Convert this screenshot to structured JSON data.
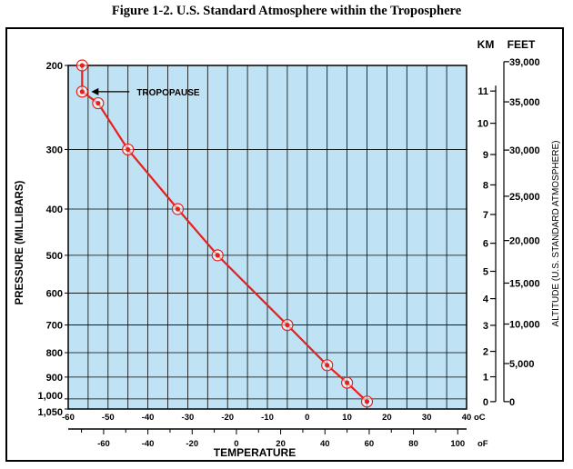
{
  "figure_title": "Figure 1-2. U.S. Standard Atmosphere within the Troposphere",
  "chart_data": {
    "type": "line",
    "title": "Figure 1-2. U.S. Standard Atmosphere within the Troposphere",
    "xlabel": "TEMPERATURE",
    "ylabel": "PRESSURE (MILLIBARS)",
    "y_scale": "log",
    "xlim_celsius": [
      -60,
      40
    ],
    "ylim_millibars": [
      200,
      1050
    ],
    "y_inverted": true,
    "grid": true,
    "plot_background": "#bfe3f5",
    "line_color": "#e8201b",
    "celsius_ticks": [
      "-60",
      "-50",
      "-40",
      "-30",
      "-20",
      "-10",
      "0",
      "10",
      "20",
      "30",
      "40"
    ],
    "celsius_unit": "oC",
    "fahrenheit_ticks": [
      "-60",
      "-40",
      "-20",
      "0",
      "20",
      "40",
      "60",
      "80",
      "100"
    ],
    "fahrenheit_unit": "oF",
    "pressure_ticks": [
      "200",
      "300",
      "400",
      "500",
      "600",
      "700",
      "800",
      "900",
      "1,000",
      "1,050"
    ],
    "km_header": "KM",
    "feet_header": "FEET",
    "km_ticks": [
      "0",
      "1",
      "2",
      "3",
      "4",
      "5",
      "6",
      "7",
      "8",
      "9",
      "10",
      "11"
    ],
    "feet_ticks": [
      "0",
      "5,000",
      "10,000",
      "15,000",
      "20,000",
      "25,000",
      "30,000",
      "35,000",
      "39,000"
    ],
    "right_axis_label": "ALTITUDE (U.S. STANDARD ATMOSPHERE)",
    "annotation": "TROPOPAUSE",
    "series": [
      {
        "x_celsius": [
          -56.5,
          -56.5,
          -52.5,
          -45,
          -32.5,
          -22.5,
          -5,
          5,
          10,
          15
        ],
        "y_millibars": [
          200,
          227,
          240,
          300,
          400,
          500,
          700,
          850,
          925,
          1013
        ]
      }
    ]
  }
}
